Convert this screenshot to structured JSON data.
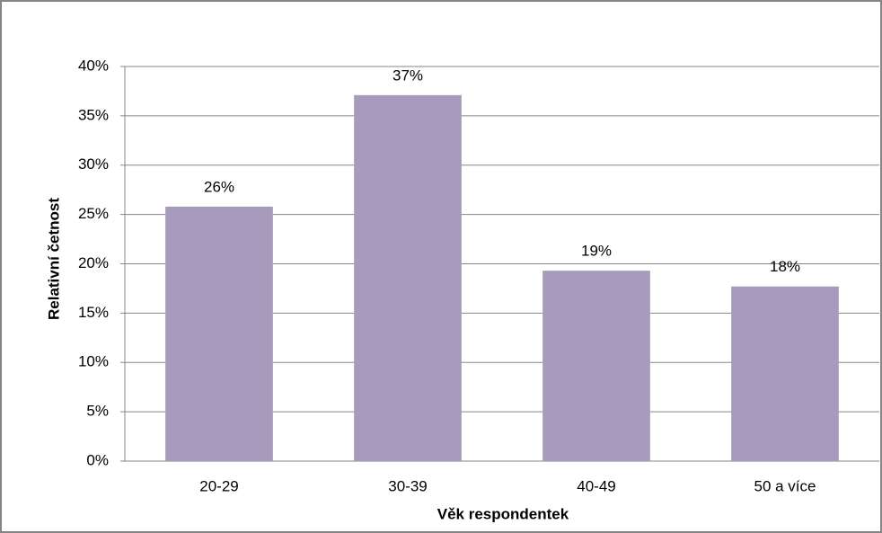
{
  "chart_data": {
    "type": "bar",
    "x_label": "Věk respondentek",
    "y_label": "Relativní četnost",
    "categories": [
      "20-29",
      "30-39",
      "40-49",
      "50 a více"
    ],
    "values": [
      25.8,
      37.1,
      19.3,
      17.7
    ],
    "value_labels": [
      "26%",
      "37%",
      "19%",
      "18%"
    ],
    "color": "#a79bbd",
    "ylim": [
      0,
      40
    ],
    "yticks": [
      {
        "value": 0,
        "label": "0%"
      },
      {
        "value": 5,
        "label": "5%"
      },
      {
        "value": 10,
        "label": "10%"
      },
      {
        "value": 15,
        "label": "15%"
      },
      {
        "value": 20,
        "label": "20%"
      },
      {
        "value": 25,
        "label": "25%"
      },
      {
        "value": 30,
        "label": "30%"
      },
      {
        "value": 35,
        "label": "35%"
      },
      {
        "value": 40,
        "label": "40%"
      }
    ],
    "grid": true
  }
}
